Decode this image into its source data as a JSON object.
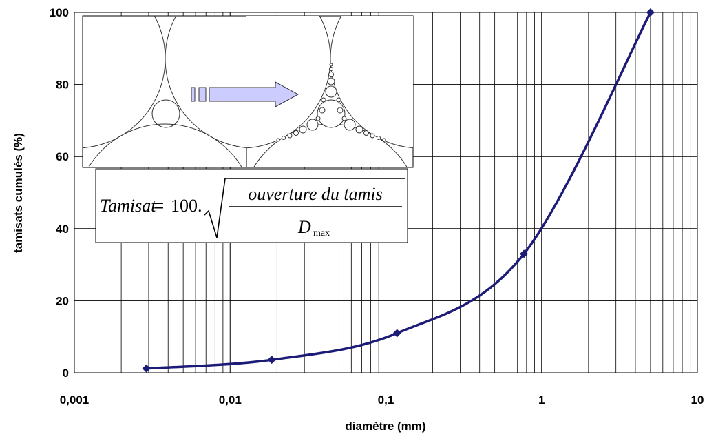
{
  "chart_data": {
    "type": "line",
    "xlabel": "diamètre (mm)",
    "ylabel": "tamisats cumulés (%)",
    "log_x": true,
    "grid": true,
    "xlim": [
      0.001,
      10
    ],
    "xticks": [
      {
        "value": 0.001,
        "label": "0,001"
      },
      {
        "value": 0.01,
        "label": "0,01"
      },
      {
        "value": 0.1,
        "label": "0,1"
      },
      1,
      10
    ],
    "ylim": [
      0,
      100
    ],
    "yticks": [
      0,
      20,
      40,
      60,
      80,
      100
    ],
    "series": [
      {
        "color": "#1c1c78",
        "x": [
          0.0029,
          0.0185,
          0.118,
          0.77,
          5
        ],
        "values": [
          1.2,
          3.6,
          11,
          33,
          100
        ]
      }
    ],
    "formula": {
      "lhs": "Tamisat",
      "equals": "=",
      "coefficient": "100.",
      "numerator": "ouverture du tamis",
      "denominator": "D",
      "subscript": "max"
    }
  }
}
